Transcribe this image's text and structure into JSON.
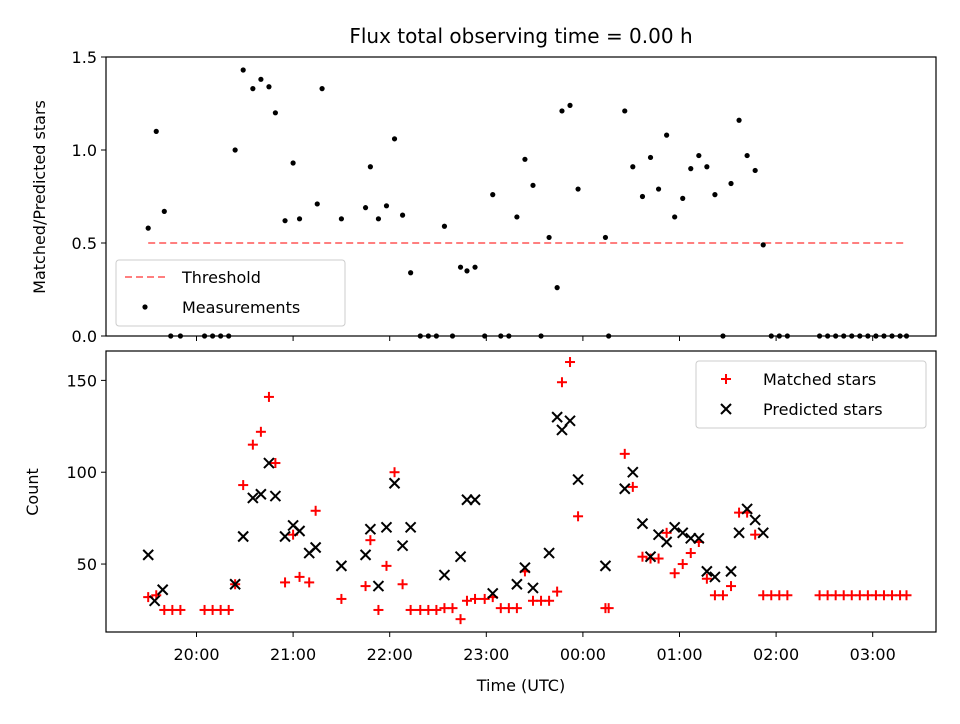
{
  "chart_data": [
    {
      "type": "scatter",
      "title": "Flux total observing time = 0.00 h",
      "ylabel": "Matched/Predicted stars",
      "ylim": [
        0,
        1.5
      ],
      "yticks": [
        0.0,
        0.5,
        1.0,
        1.5
      ],
      "ytick_labels": [
        "0.0",
        "0.5",
        "1.0",
        "1.5"
      ],
      "legend_position": "lower-left",
      "threshold": {
        "name": "Threshold",
        "value": 0.5,
        "x_range": [
          "19:30",
          "03:20"
        ],
        "color": "#ff7f7f"
      },
      "series": [
        {
          "name": "Measurements",
          "color": "#000000",
          "points": [
            [
              "19:30",
              0.58
            ],
            [
              "19:35",
              1.1
            ],
            [
              "19:40",
              0.67
            ],
            [
              "19:44",
              0.0
            ],
            [
              "19:50",
              0.0
            ],
            [
              "20:05",
              0.0
            ],
            [
              "20:10",
              0.0
            ],
            [
              "20:15",
              0.0
            ],
            [
              "20:20",
              0.0
            ],
            [
              "20:24",
              1.0
            ],
            [
              "20:29",
              1.43
            ],
            [
              "20:35",
              1.33
            ],
            [
              "20:40",
              1.38
            ],
            [
              "20:45",
              1.34
            ],
            [
              "20:49",
              1.2
            ],
            [
              "20:55",
              0.62
            ],
            [
              "21:00",
              0.93
            ],
            [
              "21:04",
              0.63
            ],
            [
              "21:15",
              0.71
            ],
            [
              "21:18",
              1.33
            ],
            [
              "21:30",
              0.63
            ],
            [
              "21:45",
              0.69
            ],
            [
              "21:48",
              0.91
            ],
            [
              "21:53",
              0.63
            ],
            [
              "21:58",
              0.7
            ],
            [
              "22:03",
              1.06
            ],
            [
              "22:08",
              0.65
            ],
            [
              "22:13",
              0.34
            ],
            [
              "22:19",
              0.0
            ],
            [
              "22:24",
              0.0
            ],
            [
              "22:29",
              0.0
            ],
            [
              "22:34",
              0.59
            ],
            [
              "22:39",
              0.0
            ],
            [
              "22:44",
              0.37
            ],
            [
              "22:48",
              0.35
            ],
            [
              "22:53",
              0.37
            ],
            [
              "22:59",
              0.0
            ],
            [
              "23:04",
              0.76
            ],
            [
              "23:09",
              0.0
            ],
            [
              "23:14",
              0.0
            ],
            [
              "23:19",
              0.64
            ],
            [
              "23:24",
              0.95
            ],
            [
              "23:29",
              0.81
            ],
            [
              "23:34",
              0.0
            ],
            [
              "23:39",
              0.53
            ],
            [
              "23:44",
              0.26
            ],
            [
              "23:47",
              1.21
            ],
            [
              "23:52",
              1.24
            ],
            [
              "23:57",
              0.79
            ],
            [
              "00:14",
              0.53
            ],
            [
              "00:16",
              0.0
            ],
            [
              "00:26",
              1.21
            ],
            [
              "00:31",
              0.91
            ],
            [
              "00:37",
              0.75
            ],
            [
              "00:42",
              0.96
            ],
            [
              "00:47",
              0.79
            ],
            [
              "00:52",
              1.08
            ],
            [
              "00:57",
              0.64
            ],
            [
              "01:02",
              0.74
            ],
            [
              "01:07",
              0.9
            ],
            [
              "01:12",
              0.97
            ],
            [
              "01:17",
              0.91
            ],
            [
              "01:22",
              0.76
            ],
            [
              "01:27",
              0.0
            ],
            [
              "01:32",
              0.82
            ],
            [
              "01:37",
              1.16
            ],
            [
              "01:42",
              0.97
            ],
            [
              "01:47",
              0.89
            ],
            [
              "01:52",
              0.49
            ],
            [
              "01:57",
              0.0
            ],
            [
              "02:02",
              0.0
            ],
            [
              "02:07",
              0.0
            ],
            [
              "02:27",
              0.0
            ],
            [
              "02:32",
              0.0
            ],
            [
              "02:37",
              0.0
            ],
            [
              "02:42",
              0.0
            ],
            [
              "02:47",
              0.0
            ],
            [
              "02:52",
              0.0
            ],
            [
              "02:57",
              0.0
            ],
            [
              "03:02",
              0.0
            ],
            [
              "03:07",
              0.0
            ],
            [
              "03:12",
              0.0
            ],
            [
              "03:17",
              0.0
            ],
            [
              "03:21",
              0.0
            ]
          ]
        }
      ]
    },
    {
      "type": "scatter",
      "xlabel": "Time (UTC)",
      "ylabel": "Count",
      "ylim": [
        13,
        166
      ],
      "yticks": [
        50,
        100,
        150
      ],
      "ytick_labels": [
        "50",
        "100",
        "150"
      ],
      "xticks": [
        "20:00",
        "21:00",
        "22:00",
        "23:00",
        "00:00",
        "01:00",
        "02:00",
        "03:00"
      ],
      "legend_position": "top-right",
      "series": [
        {
          "name": "Matched stars",
          "marker": "+",
          "color": "#ff0000",
          "points": [
            [
              "19:30",
              32
            ],
            [
              "19:35",
              33
            ],
            [
              "19:40",
              25
            ],
            [
              "19:45",
              25
            ],
            [
              "19:50",
              25
            ],
            [
              "20:05",
              25
            ],
            [
              "20:10",
              25
            ],
            [
              "20:15",
              25
            ],
            [
              "20:20",
              25
            ],
            [
              "20:24",
              39
            ],
            [
              "20:29",
              93
            ],
            [
              "20:35",
              115
            ],
            [
              "20:40",
              122
            ],
            [
              "20:45",
              141
            ],
            [
              "20:49",
              105
            ],
            [
              "20:55",
              40
            ],
            [
              "21:00",
              66
            ],
            [
              "21:04",
              43
            ],
            [
              "21:10",
              40
            ],
            [
              "21:14",
              79
            ],
            [
              "21:30",
              31
            ],
            [
              "21:45",
              38
            ],
            [
              "21:48",
              63
            ],
            [
              "21:53",
              25
            ],
            [
              "21:58",
              49
            ],
            [
              "22:03",
              100
            ],
            [
              "22:08",
              39
            ],
            [
              "22:13",
              25
            ],
            [
              "22:19",
              25
            ],
            [
              "22:24",
              25
            ],
            [
              "22:29",
              25
            ],
            [
              "22:34",
              26
            ],
            [
              "22:39",
              26
            ],
            [
              "22:44",
              20
            ],
            [
              "22:48",
              30
            ],
            [
              "22:53",
              31
            ],
            [
              "22:59",
              31
            ],
            [
              "23:04",
              32
            ],
            [
              "23:09",
              26
            ],
            [
              "23:14",
              26
            ],
            [
              "23:19",
              26
            ],
            [
              "23:24",
              46
            ],
            [
              "23:29",
              30
            ],
            [
              "23:34",
              30
            ],
            [
              "23:39",
              30
            ],
            [
              "23:44",
              35
            ],
            [
              "23:47",
              149
            ],
            [
              "23:52",
              160
            ],
            [
              "23:57",
              76
            ],
            [
              "00:14",
              26
            ],
            [
              "00:16",
              26
            ],
            [
              "00:26",
              110
            ],
            [
              "00:31",
              92
            ],
            [
              "00:37",
              54
            ],
            [
              "00:42",
              53
            ],
            [
              "00:47",
              53
            ],
            [
              "00:52",
              67
            ],
            [
              "00:57",
              45
            ],
            [
              "01:02",
              50
            ],
            [
              "01:07",
              56
            ],
            [
              "01:12",
              62
            ],
            [
              "01:17",
              42
            ],
            [
              "01:22",
              33
            ],
            [
              "01:27",
              33
            ],
            [
              "01:32",
              38
            ],
            [
              "01:37",
              78
            ],
            [
              "01:42",
              78
            ],
            [
              "01:47",
              66
            ],
            [
              "01:52",
              33
            ],
            [
              "01:57",
              33
            ],
            [
              "02:02",
              33
            ],
            [
              "02:07",
              33
            ],
            [
              "02:27",
              33
            ],
            [
              "02:32",
              33
            ],
            [
              "02:37",
              33
            ],
            [
              "02:42",
              33
            ],
            [
              "02:47",
              33
            ],
            [
              "02:52",
              33
            ],
            [
              "02:57",
              33
            ],
            [
              "03:02",
              33
            ],
            [
              "03:07",
              33
            ],
            [
              "03:12",
              33
            ],
            [
              "03:17",
              33
            ],
            [
              "03:21",
              33
            ]
          ]
        },
        {
          "name": "Predicted stars",
          "marker": "x",
          "color": "#000000",
          "points": [
            [
              "19:30",
              55
            ],
            [
              "19:34",
              30
            ],
            [
              "19:39",
              36
            ],
            [
              "20:24",
              39
            ],
            [
              "20:29",
              65
            ],
            [
              "20:35",
              86
            ],
            [
              "20:40",
              88
            ],
            [
              "20:45",
              105
            ],
            [
              "20:49",
              87
            ],
            [
              "20:55",
              65
            ],
            [
              "21:00",
              71
            ],
            [
              "21:04",
              68
            ],
            [
              "21:10",
              56
            ],
            [
              "21:14",
              59
            ],
            [
              "21:30",
              49
            ],
            [
              "21:45",
              55
            ],
            [
              "21:48",
              69
            ],
            [
              "21:53",
              38
            ],
            [
              "21:58",
              70
            ],
            [
              "22:03",
              94
            ],
            [
              "22:08",
              60
            ],
            [
              "22:13",
              70
            ],
            [
              "22:34",
              44
            ],
            [
              "22:44",
              54
            ],
            [
              "22:48",
              85
            ],
            [
              "22:53",
              85
            ],
            [
              "23:04",
              34
            ],
            [
              "23:19",
              39
            ],
            [
              "23:24",
              48
            ],
            [
              "23:29",
              37
            ],
            [
              "23:39",
              56
            ],
            [
              "23:44",
              130
            ],
            [
              "23:47",
              123
            ],
            [
              "23:52",
              128
            ],
            [
              "23:57",
              96
            ],
            [
              "00:14",
              49
            ],
            [
              "00:26",
              91
            ],
            [
              "00:31",
              100
            ],
            [
              "00:37",
              72
            ],
            [
              "00:42",
              54
            ],
            [
              "00:47",
              66
            ],
            [
              "00:52",
              62
            ],
            [
              "00:57",
              70
            ],
            [
              "01:02",
              67
            ],
            [
              "01:07",
              64
            ],
            [
              "01:12",
              64
            ],
            [
              "01:17",
              46
            ],
            [
              "01:22",
              43
            ],
            [
              "01:32",
              46
            ],
            [
              "01:37",
              67
            ],
            [
              "01:42",
              80
            ],
            [
              "01:47",
              74
            ],
            [
              "01:52",
              67
            ]
          ]
        }
      ]
    }
  ]
}
